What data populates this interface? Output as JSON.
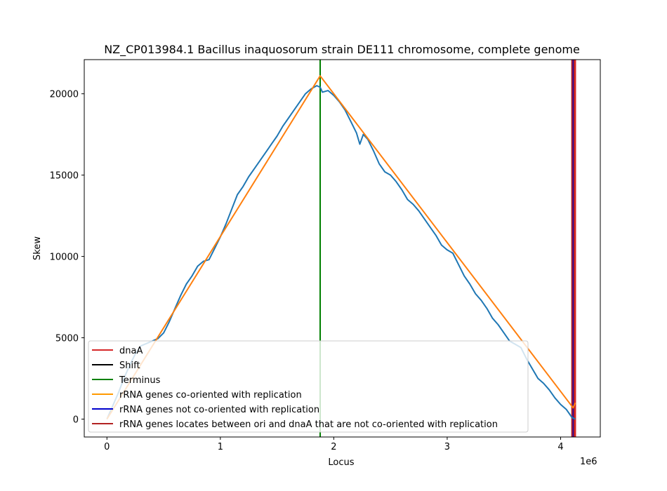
{
  "chart_data": {
    "type": "line",
    "title": "NZ_CP013984.1 Bacillus inaquosorum strain DE111 chromosome, complete genome",
    "xlabel": "Locus",
    "ylabel": "Skew",
    "x_offset_label": "1e6",
    "xlim": [
      -200000,
      4350000
    ],
    "ylim": [
      -1100,
      22100
    ],
    "x_ticks": [
      0,
      1000000,
      2000000,
      3000000,
      4000000
    ],
    "x_tick_labels": [
      "0",
      "1",
      "2",
      "3",
      "4"
    ],
    "y_ticks": [
      0,
      5000,
      10000,
      15000,
      20000
    ],
    "y_tick_labels": [
      "0",
      "5000",
      "10000",
      "15000",
      "20000"
    ],
    "grid": false,
    "legend_placement": "lower-left",
    "legend": [
      {
        "label": "dnaA",
        "color": "#d62728"
      },
      {
        "label": "Shift",
        "color": "#000000"
      },
      {
        "label": "Terminus",
        "color": "#008000"
      },
      {
        "label": "rRNA genes co-oriented with replication",
        "color": "#ff9900"
      },
      {
        "label": "rRNA genes not co-oriented with replication",
        "color": "#0000cc"
      },
      {
        "label": "rRNA genes locates between ori and dnaA that are not co-oriented with replication",
        "color": "#b22222"
      }
    ],
    "series": [
      {
        "kind": "skew",
        "color": "#1f77b4",
        "x": [
          0,
          50000,
          100000,
          150000,
          200000,
          250000,
          300000,
          350000,
          400000,
          450000,
          500000,
          550000,
          600000,
          650000,
          700000,
          750000,
          800000,
          850000,
          900000,
          950000,
          1000000,
          1050000,
          1100000,
          1150000,
          1200000,
          1250000,
          1300000,
          1350000,
          1400000,
          1450000,
          1500000,
          1550000,
          1600000,
          1650000,
          1700000,
          1750000,
          1800000,
          1850000,
          1880000,
          1900000,
          1950000,
          2000000,
          2050000,
          2100000,
          2150000,
          2200000,
          2230000,
          2260000,
          2300000,
          2350000,
          2400000,
          2450000,
          2500000,
          2550000,
          2600000,
          2650000,
          2700000,
          2750000,
          2800000,
          2850000,
          2900000,
          2950000,
          3000000,
          3050000,
          3100000,
          3150000,
          3200000,
          3250000,
          3300000,
          3350000,
          3400000,
          3450000,
          3500000,
          3550000,
          3600000,
          3650000,
          3700000,
          3750000,
          3800000,
          3850000,
          3900000,
          3950000,
          4000000,
          4050000,
          4080000,
          4100000,
          4130000
        ],
        "y": [
          0,
          800,
          1600,
          2500,
          3300,
          4000,
          4500,
          4650,
          4800,
          4950,
          5300,
          6000,
          6800,
          7600,
          8300,
          8800,
          9400,
          9700,
          9800,
          10500,
          11200,
          12000,
          12900,
          13800,
          14300,
          14900,
          15400,
          15900,
          16400,
          16900,
          17400,
          18000,
          18500,
          19000,
          19500,
          20000,
          20300,
          20500,
          20400,
          20100,
          20200,
          19900,
          19500,
          19000,
          18300,
          17600,
          16900,
          17500,
          17200,
          16500,
          15700,
          15200,
          15000,
          14600,
          14100,
          13500,
          13200,
          12800,
          12300,
          11800,
          11300,
          10700,
          10400,
          10200,
          9500,
          8800,
          8300,
          7700,
          7300,
          6800,
          6200,
          5800,
          5300,
          4800,
          4600,
          4400,
          3700,
          3100,
          2500,
          2200,
          1800,
          1300,
          900,
          600,
          300,
          100,
          0
        ]
      },
      {
        "kind": "piecewise-fit",
        "color": "#ff7f0e",
        "x": [
          0,
          1880000,
          4110000,
          4130000
        ],
        "y": [
          0,
          21100,
          700,
          1000
        ]
      }
    ],
    "vertical_lines": [
      {
        "label": "Terminus",
        "x": 1880000,
        "color": "#008000"
      },
      {
        "label": "rRNA genes not co-oriented with replication",
        "x": 4110000,
        "color": "#0000cc"
      },
      {
        "label": "rRNA genes locates between ori and dnaA that are not co-oriented with replication",
        "x": 4100000,
        "color": "#b22222"
      },
      {
        "label": "rRNA genes locates between ori and dnaA that are not co-oriented with replication",
        "x": 4120000,
        "color": "#b22222"
      },
      {
        "label": "dnaA",
        "x": 4130000,
        "color": "#d62728"
      }
    ]
  }
}
